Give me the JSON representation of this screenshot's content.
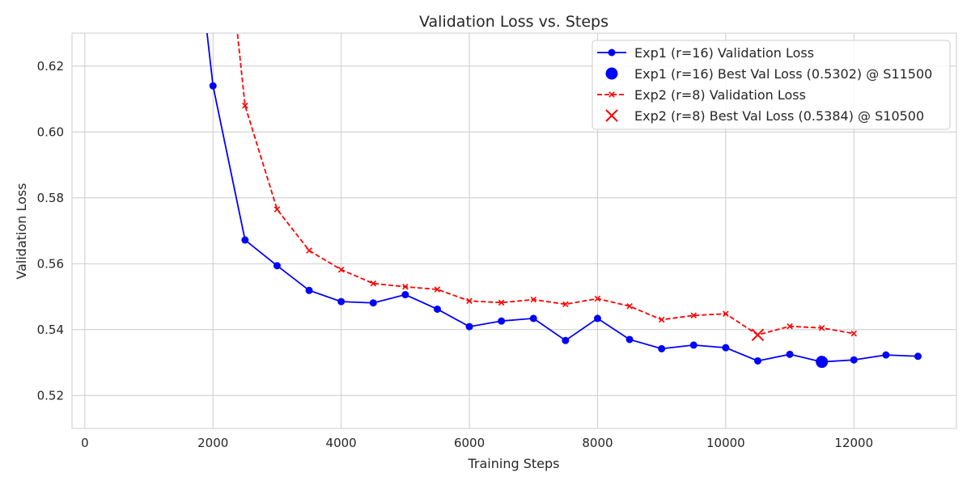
{
  "chart_data": {
    "type": "line",
    "title": "Validation Loss vs. Steps",
    "xlabel": "Training Steps",
    "ylabel": "Validation Loss",
    "xlim": [
      -200,
      13600
    ],
    "ylim": [
      0.51,
      0.63
    ],
    "xticks": [
      0,
      2000,
      4000,
      6000,
      8000,
      10000,
      12000
    ],
    "xtick_labels": [
      "0",
      "2000",
      "4000",
      "6000",
      "8000",
      "10000",
      "12000"
    ],
    "yticks": [
      0.52,
      0.54,
      0.56,
      0.58,
      0.6,
      0.62
    ],
    "ytick_labels": [
      "0.52",
      "0.54",
      "0.56",
      "0.58",
      "0.60",
      "0.62"
    ],
    "grid": true,
    "legend_position": "top-right",
    "series": [
      {
        "name": "Exp1 (r=16) Validation Loss",
        "color": "#0000ff",
        "style": "solid",
        "marker": "circle",
        "x": [
          1500,
          2000,
          2500,
          3000,
          3500,
          4000,
          4500,
          5000,
          5500,
          6000,
          6500,
          7000,
          7500,
          8000,
          8500,
          9000,
          9500,
          10000,
          10500,
          11000,
          11500,
          12000,
          12500,
          13000
        ],
        "y": [
          0.7,
          0.614,
          0.5672,
          0.5594,
          0.5519,
          0.5485,
          0.5481,
          0.5506,
          0.5462,
          0.5409,
          0.5426,
          0.5434,
          0.5367,
          0.5434,
          0.537,
          0.5342,
          0.5353,
          0.5345,
          0.5305,
          0.5325,
          0.5302,
          0.5308,
          0.5323,
          0.5319
        ]
      },
      {
        "name": "Exp2 (r=8) Validation Loss",
        "color": "#ff0000",
        "style": "dashed",
        "marker": "x",
        "x": [
          2000,
          2500,
          3000,
          3500,
          4000,
          4500,
          5000,
          5500,
          6000,
          6500,
          7000,
          7500,
          8000,
          8500,
          9000,
          9500,
          10000,
          10500,
          11000,
          11500,
          12000
        ],
        "y": [
          0.7,
          0.608,
          0.5765,
          0.564,
          0.5582,
          0.554,
          0.553,
          0.5522,
          0.5487,
          0.5482,
          0.5491,
          0.5477,
          0.5494,
          0.5471,
          0.543,
          0.5443,
          0.5448,
          0.5384,
          0.541,
          0.5405,
          0.5388
        ]
      }
    ],
    "highlights": [
      {
        "name": "Exp1 (r=16) Best Val Loss (0.5302) @ S11500",
        "x": 11500,
        "y": 0.5302,
        "color": "#0000ff",
        "marker": "circle"
      },
      {
        "name": "Exp2 (r=8) Best Val Loss (0.5384) @ S10500",
        "x": 10500,
        "y": 0.5384,
        "color": "#ff0000",
        "marker": "x"
      }
    ]
  }
}
